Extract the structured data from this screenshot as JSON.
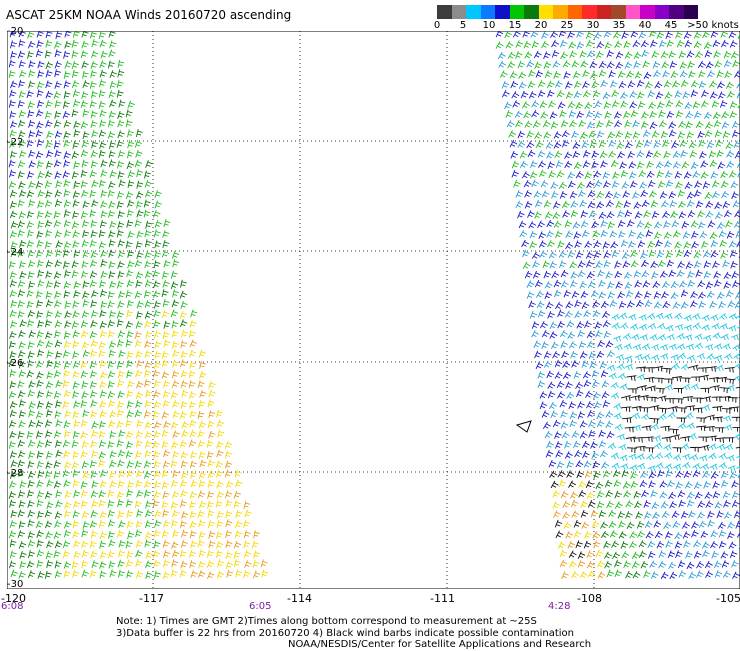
{
  "title": "ASCAT 25KM NOAA Winds 20160720 ascending",
  "legend": {
    "labels": [
      "0",
      "5",
      "10",
      "15",
      "20",
      "25",
      "30",
      "35",
      "40",
      "45",
      ">50 knots"
    ],
    "colors": [
      "#3c3c3c",
      "#8c8c8c",
      "#00c8ff",
      "#0a7bff",
      "#1010c8",
      "#00c800",
      "#0a7a0a",
      "#ffe000",
      "#ffaa00",
      "#ff6600",
      "#ff2a2a",
      "#cc2222",
      "#a04a2a",
      "#ff55c8",
      "#c800c8",
      "#8800c8",
      "#500080",
      "#2a0050"
    ]
  },
  "axes": {
    "lat_labels": [
      "-20",
      "-22",
      "-24",
      "-26",
      "-28",
      "-30"
    ],
    "lon_labels": [
      "-120",
      "-117",
      "-114",
      "-111",
      "-108",
      "-105"
    ]
  },
  "times": [
    "6:08",
    "6:05",
    "4:28"
  ],
  "notes": [
    "Note: 1) Times are GMT 2)Times along bottom correspond to measurement at ~25S",
    "3)Data buffer is 22 hrs from 20160720 4) Black wind barbs indicate possible contamination",
    "NOAA/NESDIS/Center for Satellite Applications and Research"
  ],
  "wind_colors": {
    "light_blue": "#2a9bd8",
    "blue": "#1a1acc",
    "green": "#22bb22",
    "dark_green": "#0a7a0a",
    "yellow": "#f5d800",
    "orange": "#e89a20",
    "cyan": "#22c8e0",
    "black": "#111111"
  }
}
